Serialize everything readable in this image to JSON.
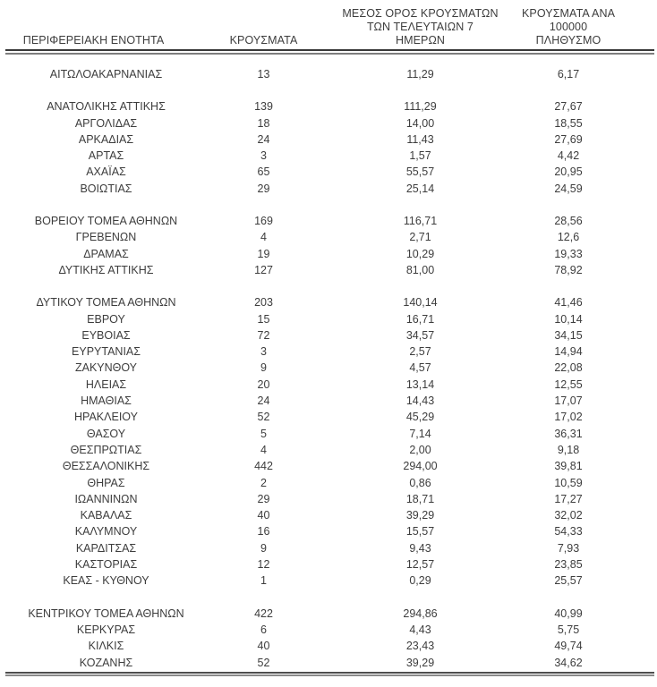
{
  "table": {
    "columns": [
      {
        "label": "ΠΕΡΙΦΕΡΕΙΑΚΗ ΕΝΟΤΗΤΑ"
      },
      {
        "label": "ΚΡΟΥΣΜΑΤΑ"
      },
      {
        "label": "ΜΕΣΟΣ ΟΡΟΣ ΚΡΟΥΣΜΑΤΩΝ\nΤΩΝ ΤΕΛΕΥΤΑΙΩΝ 7\nΗΜΕΡΩΝ"
      },
      {
        "label": "ΚΡΟΥΣΜΑΤΑ ΑΝΑ 100000\nΠΛΗΘΥΣΜΟ"
      }
    ],
    "groups": [
      [
        {
          "region": "ΑΙΤΩΛΟΑΚΑΡΝΑΝΙΑΣ",
          "cases": "13",
          "avg7days": "11,29",
          "per100k": "6,17"
        }
      ],
      [
        {
          "region": "ΑΝΑΤΟΛΙΚΗΣ ΑΤΤΙΚΗΣ",
          "cases": "139",
          "avg7days": "111,29",
          "per100k": "27,67"
        },
        {
          "region": "ΑΡΓΟΛΙΔΑΣ",
          "cases": "18",
          "avg7days": "14,00",
          "per100k": "18,55"
        },
        {
          "region": "ΑΡΚΑΔΙΑΣ",
          "cases": "24",
          "avg7days": "11,43",
          "per100k": "27,69"
        },
        {
          "region": "ΑΡΤΑΣ",
          "cases": "3",
          "avg7days": "1,57",
          "per100k": "4,42"
        },
        {
          "region": "ΑΧΑΪΑΣ",
          "cases": "65",
          "avg7days": "55,57",
          "per100k": "20,95"
        },
        {
          "region": "ΒΟΙΩΤΙΑΣ",
          "cases": "29",
          "avg7days": "25,14",
          "per100k": "24,59"
        }
      ],
      [
        {
          "region": "ΒΟΡΕΙΟΥ ΤΟΜΕΑ ΑΘΗΝΩΝ",
          "cases": "169",
          "avg7days": "116,71",
          "per100k": "28,56"
        },
        {
          "region": "ΓΡΕΒΕΝΩΝ",
          "cases": "4",
          "avg7days": "2,71",
          "per100k": "12,6"
        },
        {
          "region": "ΔΡΑΜΑΣ",
          "cases": "19",
          "avg7days": "10,29",
          "per100k": "19,33"
        },
        {
          "region": "ΔΥΤΙΚΗΣ ΑΤΤΙΚΗΣ",
          "cases": "127",
          "avg7days": "81,00",
          "per100k": "78,92"
        }
      ],
      [
        {
          "region": "ΔΥΤΙΚΟΥ ΤΟΜΕΑ ΑΘΗΝΩΝ",
          "cases": "203",
          "avg7days": "140,14",
          "per100k": "41,46"
        },
        {
          "region": "ΕΒΡΟΥ",
          "cases": "15",
          "avg7days": "16,71",
          "per100k": "10,14"
        },
        {
          "region": "ΕΥΒΟΙΑΣ",
          "cases": "72",
          "avg7days": "34,57",
          "per100k": "34,15"
        },
        {
          "region": "ΕΥΡΥΤΑΝΙΑΣ",
          "cases": "3",
          "avg7days": "2,57",
          "per100k": "14,94"
        },
        {
          "region": "ΖΑΚΥΝΘΟΥ",
          "cases": "9",
          "avg7days": "4,57",
          "per100k": "22,08"
        },
        {
          "region": "ΗΛΕΙΑΣ",
          "cases": "20",
          "avg7days": "13,14",
          "per100k": "12,55"
        },
        {
          "region": "ΗΜΑΘΙΑΣ",
          "cases": "24",
          "avg7days": "14,43",
          "per100k": "17,07"
        },
        {
          "region": "ΗΡΑΚΛΕΙΟΥ",
          "cases": "52",
          "avg7days": "45,29",
          "per100k": "17,02"
        },
        {
          "region": "ΘΑΣΟΥ",
          "cases": "5",
          "avg7days": "7,14",
          "per100k": "36,31"
        },
        {
          "region": "ΘΕΣΠΡΩΤΙΑΣ",
          "cases": "4",
          "avg7days": "2,00",
          "per100k": "9,18"
        },
        {
          "region": "ΘΕΣΣΑΛΟΝΙΚΗΣ",
          "cases": "442",
          "avg7days": "294,00",
          "per100k": "39,81"
        },
        {
          "region": "ΘΗΡΑΣ",
          "cases": "2",
          "avg7days": "0,86",
          "per100k": "10,59"
        },
        {
          "region": "ΙΩΑΝΝΙΝΩΝ",
          "cases": "29",
          "avg7days": "18,71",
          "per100k": "17,27"
        },
        {
          "region": "ΚΑΒΑΛΑΣ",
          "cases": "40",
          "avg7days": "39,29",
          "per100k": "32,02"
        },
        {
          "region": "ΚΑΛΥΜΝΟΥ",
          "cases": "16",
          "avg7days": "15,57",
          "per100k": "54,33"
        },
        {
          "region": "ΚΑΡΔΙΤΣΑΣ",
          "cases": "9",
          "avg7days": "9,43",
          "per100k": "7,93"
        },
        {
          "region": "ΚΑΣΤΟΡΙΑΣ",
          "cases": "12",
          "avg7days": "12,57",
          "per100k": "23,85"
        },
        {
          "region": "ΚΕΑΣ - ΚΥΘΝΟΥ",
          "cases": "1",
          "avg7days": "0,29",
          "per100k": "25,57"
        }
      ],
      [
        {
          "region": "ΚΕΝΤΡΙΚΟΥ ΤΟΜΕΑ ΑΘΗΝΩΝ",
          "cases": "422",
          "avg7days": "294,86",
          "per100k": "40,99"
        },
        {
          "region": "ΚΕΡΚΥΡΑΣ",
          "cases": "6",
          "avg7days": "4,43",
          "per100k": "5,75"
        },
        {
          "region": "ΚΙΛΚΙΣ",
          "cases": "40",
          "avg7days": "23,43",
          "per100k": "49,74"
        },
        {
          "region": "ΚΟΖΑΝΗΣ",
          "cases": "52",
          "avg7days": "39,29",
          "per100k": "34,62"
        }
      ]
    ]
  },
  "colors": {
    "text": "#3d3d3d",
    "rule_dark": "#393939",
    "rule_gray": "#7e7e7e"
  }
}
